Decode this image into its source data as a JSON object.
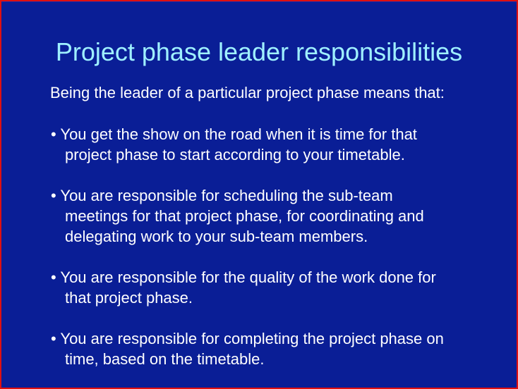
{
  "slide": {
    "title": "Project phase leader responsibilities",
    "intro": "Being the leader of a particular project phase means that:",
    "bullets": [
      {
        "lines": [
          "• You get the show on the road when it is time for that",
          "project phase to start according to your timetable."
        ]
      },
      {
        "lines": [
          "• You are responsible for scheduling the sub-team",
          "meetings for that project phase, for coordinating and",
          "delegating work to your sub-team members."
        ]
      },
      {
        "lines": [
          "• You are responsible for the quality of the work done for",
          "that project phase."
        ]
      },
      {
        "lines": [
          "• You are responsible for completing the project phase on",
          "time, based on the timetable."
        ]
      }
    ]
  },
  "colors": {
    "background": "#0a1e96",
    "title": "#9ff0ff",
    "text": "#ffffff",
    "frame": "#e01010"
  }
}
